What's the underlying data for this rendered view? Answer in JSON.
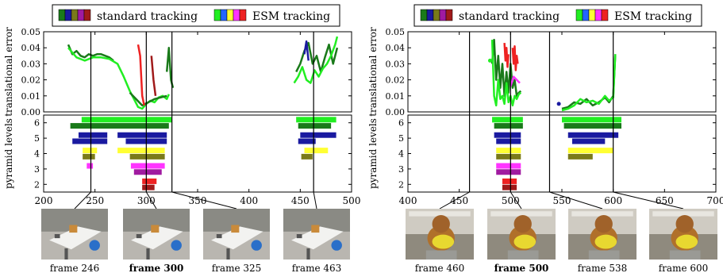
{
  "chart_data": [
    {
      "type": "line",
      "legend": [
        {
          "label": "standard tracking",
          "swatches": [
            "#1a7a1a",
            "#1a1aa0",
            "#7a7a1a",
            "#a01aa0",
            "#a01a1a"
          ]
        },
        {
          "label": "ESM tracking",
          "swatches": [
            "#22ee22",
            "#2266ff",
            "#ffff33",
            "#ff33ff",
            "#ee2222"
          ]
        }
      ],
      "top_ylabel": "translational error",
      "bottom_ylabel": "pyramid levels",
      "xlim": [
        200,
        500
      ],
      "ylim": [
        0,
        0.05
      ],
      "levels_ylim": [
        1.5,
        6.5
      ],
      "xticks": [
        "200",
        "250",
        "300",
        "350",
        "400",
        "450",
        "500"
      ],
      "yticks": [
        "0.00",
        "0.01",
        "0.02",
        "0.03",
        "0.04",
        "0.05"
      ],
      "level_ticks": [
        "2",
        "3",
        "4",
        "5",
        "6"
      ],
      "marker_frames": [
        246,
        300,
        325,
        463
      ],
      "series": [
        {
          "color": "#1a7a1a",
          "x": [
            224,
            228,
            232,
            236,
            240,
            244,
            248,
            252,
            256,
            260,
            264,
            268
          ],
          "y": [
            0.042,
            0.036,
            0.038,
            0.035,
            0.034,
            0.036,
            0.035,
            0.036,
            0.036,
            0.035,
            0.034,
            0.032
          ]
        },
        {
          "color": "#22ee22",
          "x": [
            224,
            232,
            240,
            248,
            256,
            264,
            272,
            278,
            284,
            288,
            292,
            296,
            300,
            304,
            308,
            312,
            316,
            320,
            322
          ],
          "y": [
            0.04,
            0.034,
            0.032,
            0.034,
            0.034,
            0.033,
            0.03,
            0.022,
            0.013,
            0.008,
            0.003,
            0.002,
            0.005,
            0.007,
            0.006,
            0.009,
            0.01,
            0.008,
            0.011
          ]
        },
        {
          "color": "#1a7a1a",
          "x": [
            284,
            290,
            296,
            302,
            308,
            314,
            320
          ],
          "y": [
            0.012,
            0.008,
            0.004,
            0.006,
            0.008,
            0.009,
            0.01
          ]
        },
        {
          "color": "#ee2222",
          "x": [
            292,
            294,
            296,
            298
          ],
          "y": [
            0.042,
            0.035,
            0.01,
            0.004
          ]
        },
        {
          "color": "#a01a1a",
          "x": [
            305,
            307,
            309
          ],
          "y": [
            0.035,
            0.02,
            0.01
          ]
        },
        {
          "color": "#1a7a1a",
          "x": [
            320,
            322,
            324,
            326
          ],
          "y": [
            0.025,
            0.04,
            0.02,
            0.015
          ]
        },
        {
          "color": "#1a7a1a",
          "x": [
            446,
            450,
            454,
            458,
            462,
            466,
            470,
            474,
            478,
            482,
            486
          ],
          "y": [
            0.025,
            0.03,
            0.038,
            0.043,
            0.03,
            0.035,
            0.025,
            0.034,
            0.042,
            0.03,
            0.04
          ]
        },
        {
          "color": "#1a1aa0",
          "x": [
            454,
            456,
            458
          ],
          "y": [
            0.036,
            0.044,
            0.032
          ]
        },
        {
          "color": "#22ee22",
          "x": [
            444,
            448,
            452,
            456,
            460,
            464,
            468,
            472,
            476,
            480,
            484,
            486
          ],
          "y": [
            0.018,
            0.022,
            0.028,
            0.02,
            0.018,
            0.026,
            0.022,
            0.027,
            0.03,
            0.035,
            0.042,
            0.047
          ]
        }
      ],
      "level_bars": [
        {
          "color": "#22ee22",
          "level": 6.2,
          "segments": [
            [
              237,
              325
            ],
            [
              446,
              485
            ]
          ]
        },
        {
          "color": "#1a7a1a",
          "level": 5.8,
          "segments": [
            [
              226,
              322
            ],
            [
              448,
              480
            ]
          ]
        },
        {
          "color": "#1a1aa0",
          "level": 5.2,
          "segments": [
            [
              234,
              262
            ],
            [
              272,
              320
            ],
            [
              450,
              485
            ]
          ]
        },
        {
          "color": "#1a1aa0",
          "level": 4.8,
          "segments": [
            [
              228,
              262
            ],
            [
              280,
              320
            ],
            [
              448,
              465
            ]
          ]
        },
        {
          "color": "#ffff33",
          "level": 4.2,
          "segments": [
            [
              238,
              252
            ],
            [
              272,
              318
            ],
            [
              454,
              477
            ]
          ]
        },
        {
          "color": "#7a7a1a",
          "level": 3.8,
          "segments": [
            [
              238,
              250
            ],
            [
              284,
              318
            ],
            [
              451,
              462
            ]
          ]
        },
        {
          "color": "#ff33ff",
          "level": 3.2,
          "segments": [
            [
              242,
              248
            ],
            [
              285,
              318
            ]
          ]
        },
        {
          "color": "#a01aa0",
          "level": 2.8,
          "segments": [
            [
              288,
              315
            ]
          ]
        },
        {
          "color": "#ee2222",
          "level": 2.2,
          "segments": [
            [
              296,
              310
            ]
          ]
        },
        {
          "color": "#a01a1a",
          "level": 1.8,
          "segments": [
            [
              296,
              308
            ]
          ]
        }
      ],
      "thumbnails": [
        {
          "caption": "frame 246",
          "bold": false,
          "scene": "desk"
        },
        {
          "caption": "frame 300",
          "bold": true,
          "scene": "desk"
        },
        {
          "caption": "frame 325",
          "bold": false,
          "scene": "desk"
        },
        {
          "caption": "frame 463",
          "bold": false,
          "scene": "desk"
        }
      ]
    },
    {
      "type": "line",
      "legend": [
        {
          "label": "standard tracking",
          "swatches": [
            "#1a7a1a",
            "#1a1aa0",
            "#7a7a1a",
            "#a01aa0",
            "#a01a1a"
          ]
        },
        {
          "label": "ESM tracking",
          "swatches": [
            "#22ee22",
            "#2266ff",
            "#ffff33",
            "#ff33ff",
            "#ee2222"
          ]
        }
      ],
      "top_ylabel": "translational error",
      "bottom_ylabel": "pyramid levels",
      "xlim": [
        400,
        700
      ],
      "ylim": [
        0,
        0.05
      ],
      "levels_ylim": [
        1.5,
        6.5
      ],
      "xticks": [
        "400",
        "450",
        "500",
        "550",
        "600",
        "650",
        "700"
      ],
      "yticks": [
        "0.00",
        "0.01",
        "0.02",
        "0.03",
        "0.04",
        "0.05"
      ],
      "level_ticks": [
        "2",
        "3",
        "4",
        "5",
        "6"
      ],
      "marker_frames": [
        460,
        500,
        538,
        600
      ],
      "series": [
        {
          "color": "#1a7a1a",
          "x": [
            482,
            484,
            486,
            488,
            490,
            492,
            494,
            496,
            498,
            500,
            502,
            504,
            506,
            508,
            510
          ],
          "y": [
            0.03,
            0.045,
            0.02,
            0.035,
            0.015,
            0.03,
            0.01,
            0.025,
            0.012,
            0.03,
            0.015,
            0.02,
            0.01,
            0.012,
            0.013
          ]
        },
        {
          "color": "#22ee22",
          "x": [
            482,
            484,
            486,
            488,
            490,
            492,
            494,
            496,
            498,
            500,
            502,
            504,
            506,
            508,
            510
          ],
          "y": [
            0.045,
            0.01,
            0.004,
            0.02,
            0.008,
            0.01,
            0.005,
            0.018,
            0.006,
            0.01,
            0.004,
            0.01,
            0.008,
            0.011,
            0.012
          ]
        },
        {
          "color": "#ee2222",
          "x": [
            494,
            495,
            496,
            497,
            498
          ],
          "y": [
            0.043,
            0.032,
            0.04,
            0.028,
            0.036
          ]
        },
        {
          "color": "#ee2222",
          "x": [
            502,
            503,
            504,
            505,
            506,
            507
          ],
          "y": [
            0.04,
            0.03,
            0.041,
            0.026,
            0.035,
            0.03
          ]
        },
        {
          "color": "#ff33ff",
          "x": [
            500,
            503,
            506,
            509
          ],
          "y": [
            0.016,
            0.022,
            0.02,
            0.018
          ]
        },
        {
          "color": "#1a7a1a",
          "x": [
            550,
            556,
            562,
            568,
            574,
            580,
            586,
            592,
            596,
            600,
            602
          ],
          "y": [
            0.002,
            0.003,
            0.006,
            0.005,
            0.008,
            0.004,
            0.006,
            0.009,
            0.006,
            0.01,
            0.036
          ]
        },
        {
          "color": "#22ee22",
          "x": [
            550,
            556,
            562,
            568,
            574,
            580,
            586,
            592,
            596,
            600,
            602
          ],
          "y": [
            0.001,
            0.002,
            0.004,
            0.008,
            0.006,
            0.007,
            0.005,
            0.01,
            0.007,
            0.009,
            0.036
          ]
        }
      ],
      "points": [
        {
          "color": "#22ee22",
          "x": 480,
          "y": 0.032
        },
        {
          "color": "#1a1aa0",
          "x": 547,
          "y": 0.005
        }
      ],
      "level_bars": [
        {
          "color": "#22ee22",
          "level": 6.2,
          "segments": [
            [
              482,
              512
            ],
            [
              550,
              608
            ]
          ]
        },
        {
          "color": "#1a7a1a",
          "level": 5.8,
          "segments": [
            [
              484,
              512
            ],
            [
              552,
              608
            ]
          ]
        },
        {
          "color": "#1a1aa0",
          "level": 5.2,
          "segments": [
            [
              484,
              510
            ],
            [
              556,
              605
            ]
          ]
        },
        {
          "color": "#1a1aa0",
          "level": 4.8,
          "segments": [
            [
              486,
              510
            ],
            [
              560,
              592
            ]
          ]
        },
        {
          "color": "#ffff33",
          "level": 4.2,
          "segments": [
            [
              486,
              510
            ],
            [
              556,
              600
            ]
          ]
        },
        {
          "color": "#7a7a1a",
          "level": 3.8,
          "segments": [
            [
              486,
              510
            ],
            [
              556,
              580
            ]
          ]
        },
        {
          "color": "#ff33ff",
          "level": 3.2,
          "segments": [
            [
              486,
              510
            ]
          ]
        },
        {
          "color": "#a01aa0",
          "level": 2.8,
          "segments": [
            [
              486,
              510
            ]
          ]
        },
        {
          "color": "#ee2222",
          "level": 2.2,
          "segments": [
            [
              492,
              506
            ]
          ]
        },
        {
          "color": "#a01a1a",
          "level": 1.8,
          "segments": [
            [
              492,
              506
            ]
          ]
        }
      ],
      "thumbnails": [
        {
          "caption": "frame 460",
          "bold": false,
          "scene": "teddy"
        },
        {
          "caption": "frame 500",
          "bold": true,
          "scene": "teddy"
        },
        {
          "caption": "frame 538",
          "bold": false,
          "scene": "teddy"
        },
        {
          "caption": "frame 600",
          "bold": false,
          "scene": "teddy"
        }
      ]
    }
  ]
}
